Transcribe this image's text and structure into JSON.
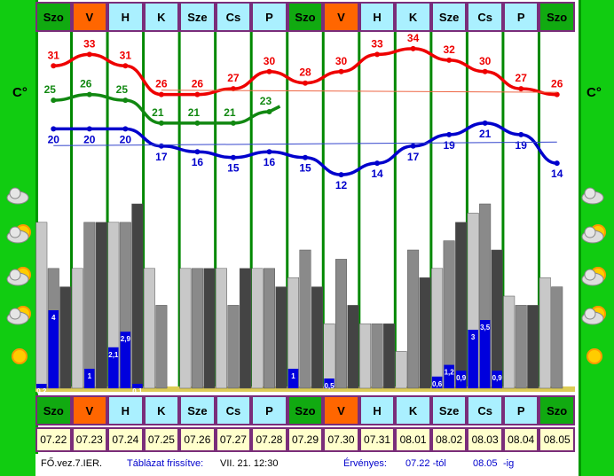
{
  "unit_label": "C°",
  "days": [
    {
      "name": "Szo",
      "date": "07.22",
      "kind": "weekend"
    },
    {
      "name": "V",
      "date": "07.23",
      "kind": "sunday"
    },
    {
      "name": "H",
      "date": "07.24",
      "kind": "weekday"
    },
    {
      "name": "K",
      "date": "07.25",
      "kind": "weekday"
    },
    {
      "name": "Sze",
      "date": "07.26",
      "kind": "weekday"
    },
    {
      "name": "Cs",
      "date": "07.27",
      "kind": "weekday"
    },
    {
      "name": "P",
      "date": "07.28",
      "kind": "weekday"
    },
    {
      "name": "Szo",
      "date": "07.29",
      "kind": "weekend"
    },
    {
      "name": "V",
      "date": "07.30",
      "kind": "sunday"
    },
    {
      "name": "H",
      "date": "07.31",
      "kind": "weekday"
    },
    {
      "name": "K",
      "date": "08.01",
      "kind": "weekday"
    },
    {
      "name": "Sze",
      "date": "08.02",
      "kind": "weekday"
    },
    {
      "name": "Cs",
      "date": "08.03",
      "kind": "weekday"
    },
    {
      "name": "P",
      "date": "08.04",
      "kind": "weekday"
    },
    {
      "name": "Szo",
      "date": "08.05",
      "kind": "weekend"
    }
  ],
  "colors": {
    "weekend": "#11aa11",
    "sunday": "#ff6600",
    "weekday": "#aaf0ff",
    "max": "#ee0000",
    "mid": "#118811",
    "min": "#0000cc",
    "grid": "#008800"
  },
  "footer": {
    "model": "FŐ.vez.7.IER.",
    "refresh_label": "Táblázat frissítve:",
    "refresh_value": "VII. 21.  12:30",
    "valid_label": "Érvényes:",
    "valid_from": "07.22 -tól",
    "valid_to": "08.05",
    "valid_to_suffix": "-ig"
  },
  "chart_data": {
    "type": "line",
    "x": [
      "07.22",
      "07.23",
      "07.24",
      "07.25",
      "07.26",
      "07.27",
      "07.28",
      "07.29",
      "07.30",
      "07.31",
      "08.01",
      "08.02",
      "08.03",
      "08.04",
      "08.05"
    ],
    "ylim": [
      10,
      36
    ],
    "series": [
      {
        "values": [
          31,
          33,
          31,
          26,
          26,
          27,
          30,
          28,
          30,
          33,
          34,
          32,
          30,
          27,
          26
        ]
      },
      {
        "values": [
          25,
          26,
          25,
          21,
          21,
          21,
          23,
          null,
          null,
          null,
          null,
          null,
          null,
          null,
          null
        ]
      },
      {
        "values": [
          20,
          20,
          20,
          17,
          16,
          15,
          16,
          15,
          12,
          14,
          17,
          19,
          21,
          19,
          14
        ]
      }
    ],
    "bars": {
      "type": "bar",
      "groups": [
        {
          "bars": [
            90,
            65,
            55
          ],
          "precip": [
            0.2,
            4,
            0
          ]
        },
        {
          "bars": [
            65,
            90,
            90
          ],
          "precip": [
            0,
            1,
            0
          ]
        },
        {
          "bars": [
            90,
            90,
            100
          ],
          "precip": [
            2.1,
            2.9,
            0.1
          ]
        },
        {
          "bars": [
            65,
            45,
            0
          ],
          "precip": [
            0,
            0,
            0
          ]
        },
        {
          "bars": [
            65,
            65,
            65
          ],
          "precip": [
            0,
            0,
            0
          ]
        },
        {
          "bars": [
            65,
            45,
            65
          ],
          "precip": [
            0,
            0,
            0
          ]
        },
        {
          "bars": [
            65,
            65,
            55
          ],
          "precip": [
            0,
            0,
            0
          ]
        },
        {
          "bars": [
            60,
            75,
            55
          ],
          "precip": [
            1,
            0,
            0
          ]
        },
        {
          "bars": [
            35,
            70,
            45
          ],
          "precip": [
            0.5,
            0,
            0
          ]
        },
        {
          "bars": [
            35,
            35,
            35
          ],
          "precip": [
            0,
            0,
            0
          ]
        },
        {
          "bars": [
            20,
            75,
            60
          ],
          "precip": [
            0,
            0,
            0
          ]
        },
        {
          "bars": [
            65,
            80,
            90
          ],
          "precip": [
            0.6,
            1.2,
            0.9
          ]
        },
        {
          "bars": [
            95,
            100,
            75
          ],
          "precip": [
            3,
            3.5,
            0.9
          ]
        },
        {
          "bars": [
            50,
            45,
            45
          ],
          "precip": [
            0,
            0,
            0
          ]
        },
        {
          "bars": [
            60,
            55,
            0
          ],
          "precip": [
            0,
            0,
            0
          ]
        }
      ]
    }
  }
}
